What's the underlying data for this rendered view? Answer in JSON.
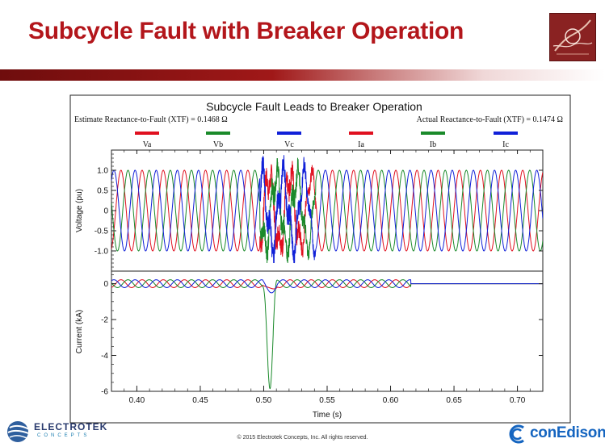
{
  "slide": {
    "title": "Subcycle Fault with Breaker Operation",
    "footer": "© 2015 Electrotek Concepts,  Inc. All rights reserved.",
    "left_brand_name": "ELECTROTEK",
    "left_brand_sub": "CONCEPTS",
    "right_brand_name": "conEdison",
    "accent_color": "#b3161b"
  },
  "chart_data": {
    "type": "line",
    "title": "Subcycle Fault Leads to Breaker Operation",
    "annotation_left": "Estimate Reactance-to-Fault (XTF) = 0.1468 Ω",
    "annotation_right": "Actual Reactance-to-Fault (XTF) = 0.1474 Ω",
    "legend_position": "top",
    "legend": [
      {
        "name": "Va",
        "color": "#e0101f"
      },
      {
        "name": "Vb",
        "color": "#1a8a2a"
      },
      {
        "name": "Vc",
        "color": "#1020d8"
      },
      {
        "name": "Ia",
        "color": "#e0101f"
      },
      {
        "name": "Ib",
        "color": "#1a8a2a"
      },
      {
        "name": "Ic",
        "color": "#1020d8"
      }
    ],
    "xlabel": "Time (s)",
    "xlim": [
      0.38,
      0.72
    ],
    "xticks": [
      "0.40",
      "0.45",
      "0.50",
      "0.55",
      "0.60",
      "0.65",
      "0.70"
    ],
    "frequency_hz": 60,
    "fault_start_s": 0.499,
    "fault_end_s": 0.505,
    "breaker_open_s": 0.616,
    "voltage_panel": {
      "ylabel": "Voltage (pu)",
      "ylim": [
        -1.5,
        1.5
      ],
      "yticks": [
        "1.0",
        "0.5",
        "0",
        "-0.5",
        "-1.0"
      ],
      "amplitude_pu": 1.0,
      "fault_peak_pu": 1.45,
      "fault_min_pu": -1.3
    },
    "current_panel": {
      "ylabel": "Current (kA)",
      "ylim": [
        -6,
        0.7
      ],
      "yticks": [
        "0",
        "-2",
        "-4",
        "-6"
      ],
      "load_amplitude_ka": 0.22,
      "fault_peak_ib_ka": -5.8,
      "fault_dip_ka": -0.45
    }
  }
}
